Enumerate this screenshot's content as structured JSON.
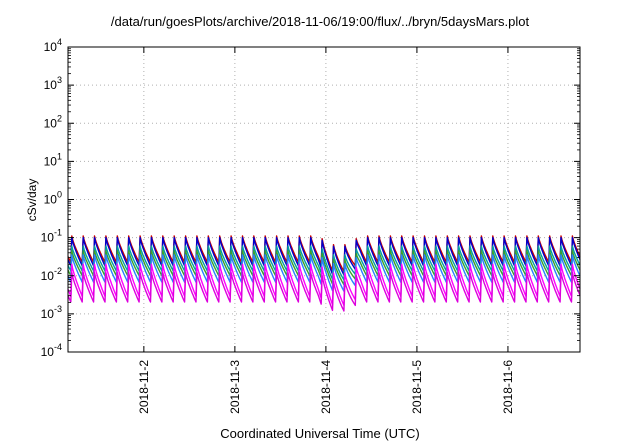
{
  "chart_data": {
    "type": "line",
    "title": "/data/run/goesPlots/archive/2018-11-06/19:00/flux/../bryn/5daysMars.plot",
    "xlabel": "Coordinated Universal Time (UTC)",
    "ylabel": "cSv/day",
    "yscale": "log",
    "ylim": [
      0.0001,
      10000
    ],
    "xlim": [
      "2018-11-01T04:00",
      "2018-11-06T19:00"
    ],
    "grid": true,
    "legend": "none",
    "y_ticks": [
      {
        "base": "10",
        "exp": "-4",
        "value": 0.0001
      },
      {
        "base": "10",
        "exp": "-3",
        "value": 0.001
      },
      {
        "base": "10",
        "exp": "-2",
        "value": 0.01
      },
      {
        "base": "10",
        "exp": "-1",
        "value": 0.1
      },
      {
        "base": "10",
        "exp": "0",
        "value": 1
      },
      {
        "base": "10",
        "exp": "1",
        "value": 10
      },
      {
        "base": "10",
        "exp": "2",
        "value": 100
      },
      {
        "base": "10",
        "exp": "3",
        "value": 1000
      },
      {
        "base": "10",
        "exp": "4",
        "value": 10000
      }
    ],
    "x_ticks": [
      "2018-11-2",
      "2018-11-3",
      "2018-11-4",
      "2018-11-5",
      "2018-11-6"
    ],
    "pattern": {
      "cycle_hours": 3,
      "first_peak": "2018-11-01T05:00",
      "dip_start": "2018-11-03T22:00",
      "dip_end": "2018-11-04T09:00"
    },
    "series": [
      {
        "color": "#cc0000",
        "peak": 0.11,
        "trough": 0.02
      },
      {
        "color": "#0000cc",
        "peak": 0.1,
        "trough": 0.016
      },
      {
        "color": "#009fa0",
        "peak": 0.06,
        "trough": 0.012
      },
      {
        "color": "#3aa02a",
        "peak": 0.045,
        "trough": 0.009
      },
      {
        "color": "#2a7fff",
        "peak": 0.035,
        "trough": 0.006
      },
      {
        "color": "#ff00ff",
        "peak": 0.02,
        "trough": 0.0025
      },
      {
        "color": "#dd00dd",
        "peak": 0.012,
        "trough": 0.0018
      }
    ]
  }
}
